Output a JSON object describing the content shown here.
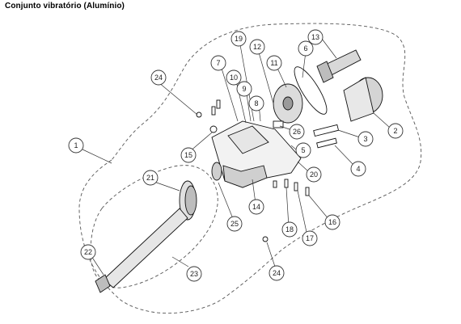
{
  "title": "Conjunto vibratório (Alumínio)",
  "callouts": [
    "1",
    "2",
    "3",
    "4",
    "5",
    "6",
    "7",
    "8",
    "9",
    "10",
    "11",
    "12",
    "13",
    "14",
    "15",
    "16",
    "17",
    "18",
    "19",
    "20",
    "21",
    "22",
    "23",
    "24",
    "24",
    "25",
    "26"
  ]
}
